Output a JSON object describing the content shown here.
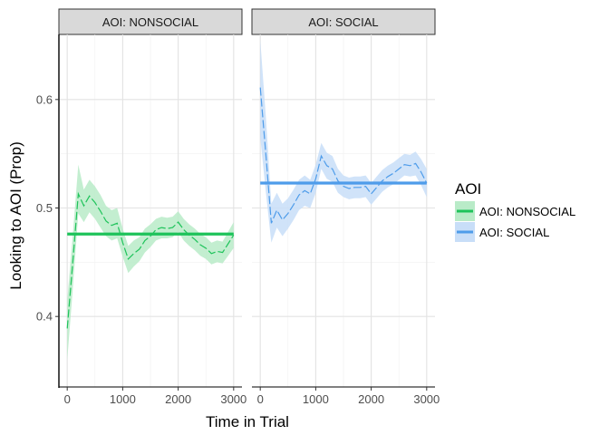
{
  "chart_data": {
    "type": "line",
    "ylabel": "Looking to AOI (Prop)",
    "xlabel": "Time in Trial",
    "xlim": [
      -150,
      3150
    ],
    "ylim": [
      0.335,
      0.66
    ],
    "x_ticks": [
      0,
      1000,
      2000,
      3000
    ],
    "x_tick_labels": [
      "0",
      "1000",
      "2000",
      "3000"
    ],
    "y_ticks": [
      0.4,
      0.5,
      0.6
    ],
    "y_tick_labels": [
      "0.4",
      "0.5",
      "0.6"
    ],
    "grid": true,
    "legend": {
      "title": "AOI",
      "placement": "right",
      "items": [
        "AOI:  NONSOCIAL",
        "AOI:  SOCIAL"
      ]
    },
    "panels": [
      {
        "strip": "AOI:  NONSOCIAL",
        "color": "#1ec35a",
        "ribbon_color": "#b9ebc8",
        "mean": 0.476,
        "x": [
          0,
          100,
          200,
          300,
          400,
          500,
          600,
          700,
          800,
          900,
          1000,
          1100,
          1200,
          1300,
          1400,
          1500,
          1600,
          1700,
          1800,
          1900,
          2000,
          2100,
          2200,
          2300,
          2400,
          2500,
          2600,
          2700,
          2800,
          2900,
          3000
        ],
        "y": [
          0.389,
          0.45,
          0.513,
          0.502,
          0.511,
          0.505,
          0.497,
          0.488,
          0.484,
          0.486,
          0.468,
          0.453,
          0.458,
          0.462,
          0.47,
          0.474,
          0.48,
          0.482,
          0.481,
          0.482,
          0.487,
          0.48,
          0.475,
          0.471,
          0.466,
          0.463,
          0.458,
          0.46,
          0.459,
          0.467,
          0.475
        ],
        "lower": [
          0.36,
          0.425,
          0.495,
          0.487,
          0.496,
          0.49,
          0.482,
          0.474,
          0.47,
          0.472,
          0.455,
          0.44,
          0.446,
          0.451,
          0.459,
          0.464,
          0.47,
          0.472,
          0.472,
          0.473,
          0.478,
          0.47,
          0.465,
          0.461,
          0.456,
          0.453,
          0.448,
          0.45,
          0.449,
          0.456,
          0.463
        ],
        "upper": [
          0.415,
          0.475,
          0.54,
          0.517,
          0.526,
          0.52,
          0.512,
          0.502,
          0.498,
          0.5,
          0.481,
          0.465,
          0.47,
          0.473,
          0.481,
          0.485,
          0.49,
          0.492,
          0.491,
          0.492,
          0.497,
          0.49,
          0.485,
          0.481,
          0.476,
          0.473,
          0.468,
          0.47,
          0.469,
          0.478,
          0.487
        ]
      },
      {
        "strip": "AOI:  SOCIAL",
        "color": "#4e9cea",
        "ribbon_color": "#c8def8",
        "mean": 0.523,
        "x": [
          0,
          100,
          200,
          300,
          400,
          500,
          600,
          700,
          800,
          900,
          1000,
          1100,
          1200,
          1300,
          1400,
          1500,
          1600,
          1700,
          1800,
          1900,
          2000,
          2100,
          2200,
          2300,
          2400,
          2500,
          2600,
          2700,
          2800,
          2900,
          3000
        ],
        "y": [
          0.611,
          0.55,
          0.486,
          0.498,
          0.489,
          0.495,
          0.503,
          0.512,
          0.516,
          0.513,
          0.527,
          0.548,
          0.539,
          0.536,
          0.525,
          0.52,
          0.518,
          0.519,
          0.519,
          0.52,
          0.513,
          0.519,
          0.525,
          0.529,
          0.532,
          0.536,
          0.54,
          0.539,
          0.541,
          0.533,
          0.523
        ],
        "lower": [
          0.565,
          0.515,
          0.468,
          0.482,
          0.474,
          0.481,
          0.489,
          0.498,
          0.502,
          0.5,
          0.514,
          0.536,
          0.527,
          0.524,
          0.514,
          0.51,
          0.508,
          0.509,
          0.509,
          0.51,
          0.503,
          0.509,
          0.515,
          0.519,
          0.522,
          0.526,
          0.53,
          0.529,
          0.53,
          0.521,
          0.51
        ],
        "upper": [
          0.655,
          0.585,
          0.504,
          0.514,
          0.504,
          0.509,
          0.517,
          0.526,
          0.53,
          0.526,
          0.54,
          0.56,
          0.551,
          0.548,
          0.536,
          0.53,
          0.528,
          0.529,
          0.529,
          0.53,
          0.523,
          0.529,
          0.535,
          0.539,
          0.542,
          0.546,
          0.55,
          0.549,
          0.552,
          0.545,
          0.536
        ]
      }
    ]
  }
}
